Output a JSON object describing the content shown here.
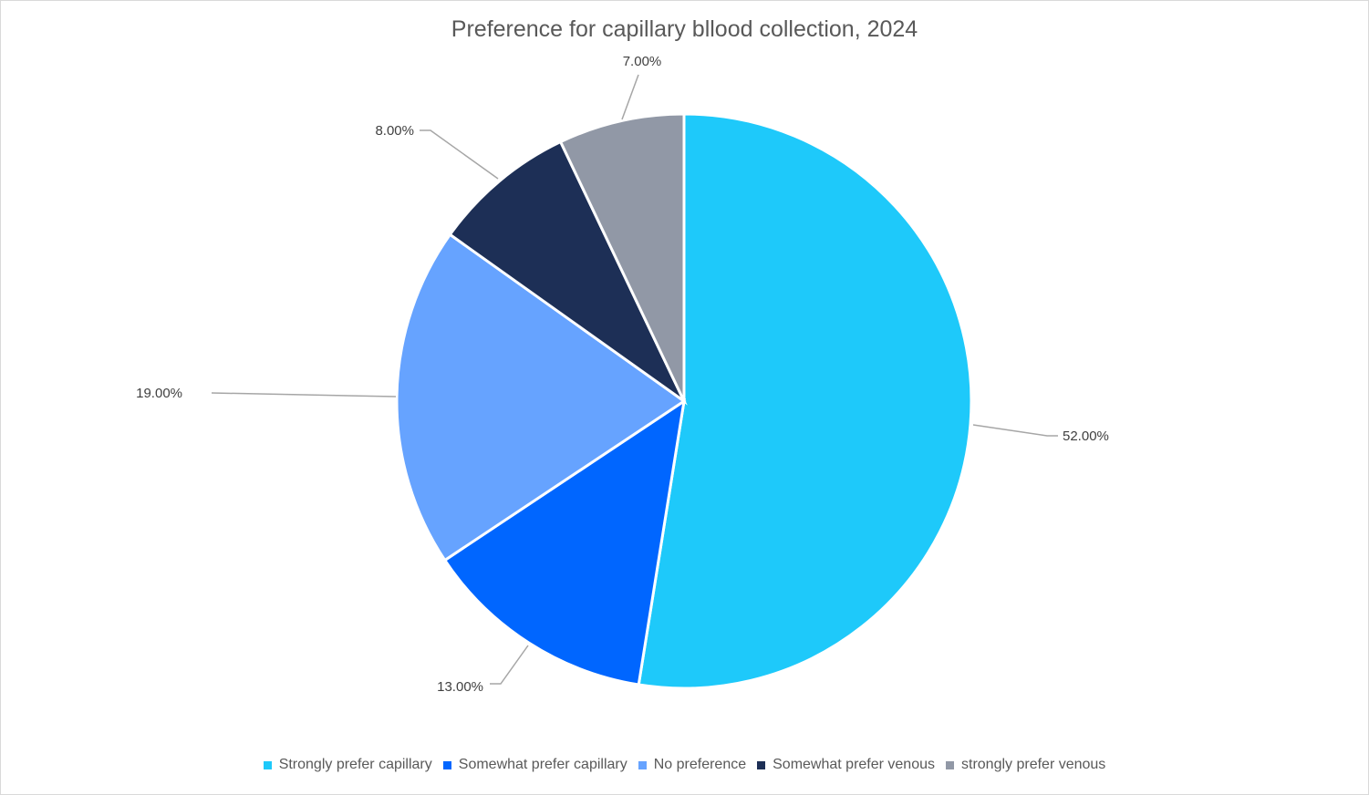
{
  "chart_data": {
    "type": "pie",
    "title": "Preference for capillary bllood collection, 2024",
    "categories": [
      "Strongly prefer capillary",
      "Somewhat prefer capillary",
      "No preference",
      "Somewhat prefer venous",
      "strongly prefer venous"
    ],
    "values": [
      52,
      13,
      19,
      8,
      7
    ],
    "data_labels": [
      "52.00%",
      "13.00%",
      "19.00%",
      "8.00%",
      "7.00%"
    ],
    "colors": [
      "#1ec9fa",
      "#0066ff",
      "#66a3ff",
      "#1d2f56",
      "#9198a6"
    ],
    "legend_position": "bottom"
  }
}
